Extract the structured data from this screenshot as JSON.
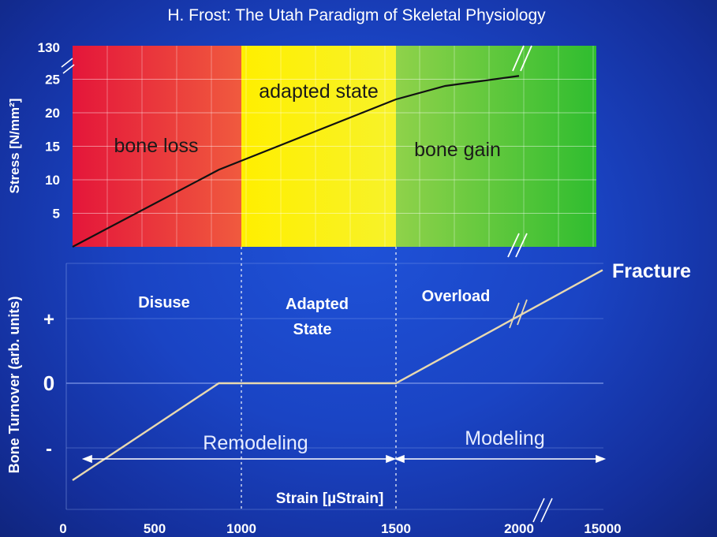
{
  "title": "H. Frost: The Utah Paradigm of Skeletal Physiology",
  "top_panel": {
    "ylabel": "Stress [N/mm²]",
    "y_ticks": [
      "5",
      "10",
      "15",
      "20",
      "25",
      "130"
    ],
    "zones": [
      {
        "label": "bone loss",
        "color": "#e8303a"
      },
      {
        "label": "adapted state",
        "color": "#fff200"
      },
      {
        "label": "bone gain",
        "color": "#44c23a"
      }
    ],
    "curve": [
      {
        "strain": 0,
        "stress": 0
      },
      {
        "strain": 870,
        "stress": 11.5
      },
      {
        "strain": 1500,
        "stress": 22
      },
      {
        "strain": 1700,
        "stress": 24
      },
      {
        "strain": 2000,
        "stress": 25.5
      }
    ]
  },
  "bottom_panel": {
    "ylabel": "Bone Turnover (arb. units)",
    "y_ticks": [
      "+",
      "0",
      "-"
    ],
    "region_labels": [
      {
        "lines": [
          "Disuse"
        ]
      },
      {
        "lines": [
          "Adapted",
          "State"
        ]
      },
      {
        "lines": [
          "Overload"
        ]
      }
    ],
    "endpoint_label": "Fracture",
    "remodeling_label": "Remodeling",
    "modeling_label": "Modeling",
    "xlabel": "Strain [µStrain]",
    "curve": [
      {
        "strain": 0,
        "turnover": -1.5
      },
      {
        "strain": 870,
        "turnover": 0
      },
      {
        "strain": 1500,
        "turnover": 0
      },
      {
        "strain": 15000,
        "turnover": 1.75
      }
    ]
  },
  "x_ticks": [
    "0",
    "500",
    "1000",
    "1500",
    "2000",
    "15000"
  ],
  "colors": {
    "curve_top": "#111111",
    "curve_bottom": "#e8d9b0",
    "text": "#ffffff"
  }
}
